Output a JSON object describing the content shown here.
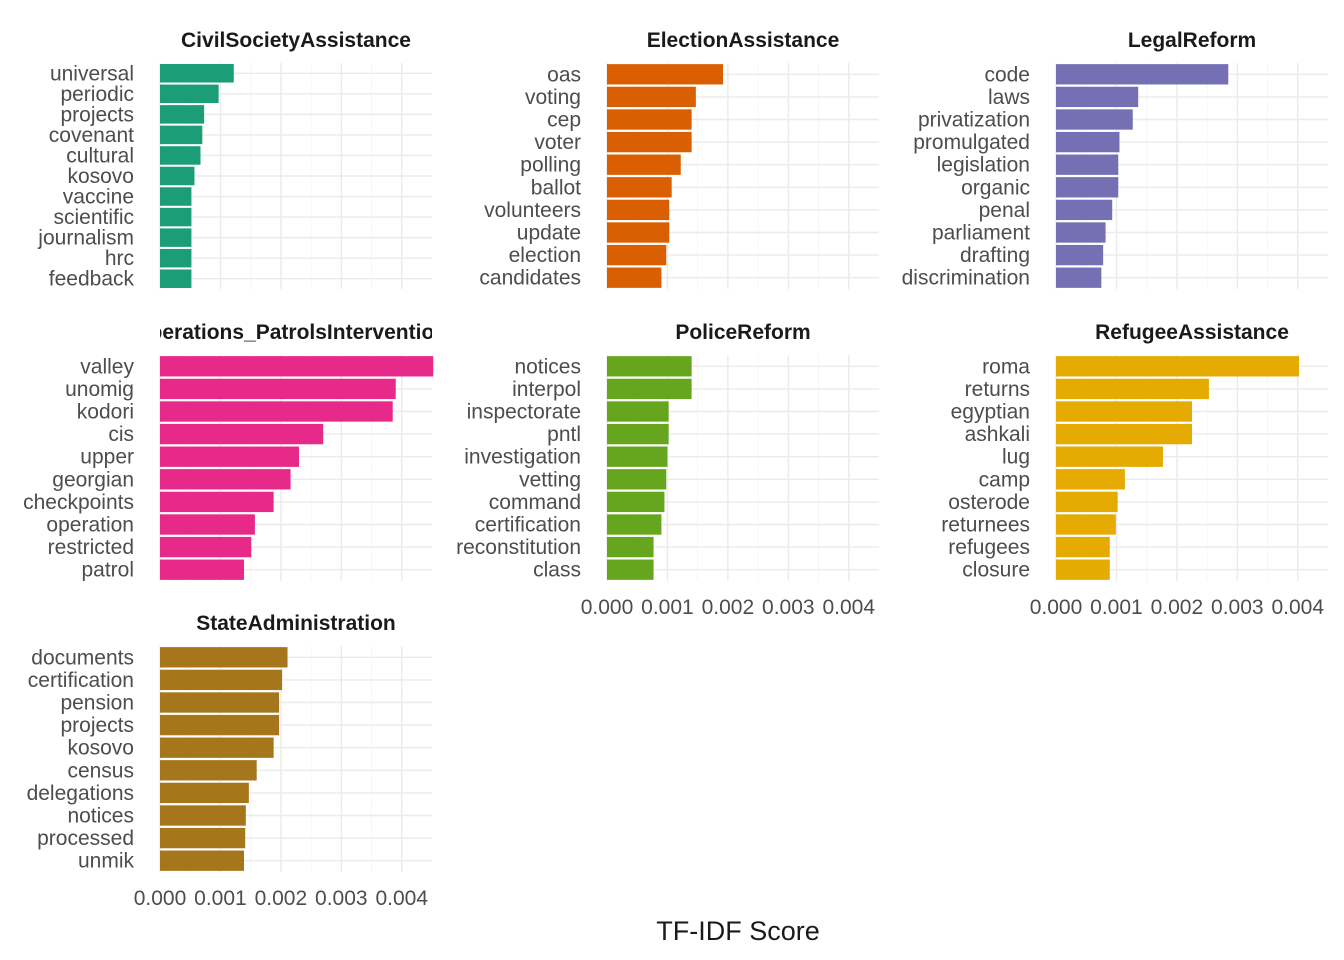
{
  "chart_data": {
    "type": "bar",
    "orientation": "horizontal",
    "xlabel": "TF-IDF Score",
    "ylabel": "",
    "xlim": [
      0,
      0.0045
    ],
    "x_ticks": [
      0.0,
      0.001,
      0.002,
      0.003,
      0.004
    ],
    "x_tick_labels": [
      "0.000",
      "0.001",
      "0.002",
      "0.003",
      "0.004"
    ],
    "grid": true,
    "legend": "none",
    "facets": [
      {
        "title": "CivilSocietyAssistance",
        "color": "#1b9e77",
        "categories": [
          "universal",
          "periodic",
          "projects",
          "covenant",
          "cultural",
          "kosovo",
          "vaccine",
          "scientific",
          "journalism",
          "hrc",
          "feedback"
        ],
        "values": [
          0.00122,
          0.00097,
          0.00073,
          0.0007,
          0.00067,
          0.00057,
          0.00052,
          0.00052,
          0.00052,
          0.00052,
          0.00052
        ]
      },
      {
        "title": "ElectionAssistance",
        "color": "#d95f02",
        "categories": [
          "oas",
          "voting",
          "cep",
          "voter",
          "polling",
          "ballot",
          "volunteers",
          "update",
          "election",
          "candidates"
        ],
        "values": [
          0.00192,
          0.00147,
          0.0014,
          0.0014,
          0.00122,
          0.00107,
          0.00103,
          0.00103,
          0.00098,
          0.0009
        ]
      },
      {
        "title": "LegalReform",
        "color": "#7570b3",
        "categories": [
          "code",
          "laws",
          "privatization",
          "promulgated",
          "legislation",
          "organic",
          "penal",
          "parliament",
          "drafting",
          "discrimination"
        ],
        "values": [
          0.00285,
          0.00136,
          0.00127,
          0.00105,
          0.00103,
          0.00103,
          0.00093,
          0.00082,
          0.00078,
          0.00075
        ]
      },
      {
        "title": "Operations_PatrolsInterventions",
        "color": "#e7298a",
        "categories": [
          "valley",
          "unomig",
          "kodori",
          "cis",
          "upper",
          "georgian",
          "checkpoints",
          "operation",
          "restricted",
          "patrol"
        ],
        "values": [
          0.00452,
          0.0039,
          0.00385,
          0.0027,
          0.0023,
          0.00216,
          0.00188,
          0.00157,
          0.00151,
          0.00139
        ]
      },
      {
        "title": "PoliceReform",
        "color": "#66a61e",
        "categories": [
          "notices",
          "interpol",
          "inspectorate",
          "pntl",
          "investigation",
          "vetting",
          "command",
          "certification",
          "reconstitution",
          "class"
        ],
        "values": [
          0.0014,
          0.0014,
          0.00102,
          0.00102,
          0.001,
          0.00098,
          0.00095,
          0.0009,
          0.00077,
          0.00077
        ]
      },
      {
        "title": "RefugeeAssistance",
        "color": "#e6ab02",
        "categories": [
          "roma",
          "returns",
          "egyptian",
          "ashkali",
          "lug",
          "camp",
          "osterode",
          "returnees",
          "refugees",
          "closure"
        ],
        "values": [
          0.00402,
          0.00253,
          0.00225,
          0.00225,
          0.00177,
          0.00114,
          0.00102,
          0.00099,
          0.00089,
          0.00089
        ]
      },
      {
        "title": "StateAdministration",
        "color": "#a6761d",
        "categories": [
          "documents",
          "certification",
          "pension",
          "projects",
          "kosovo",
          "census",
          "delegations",
          "notices",
          "processed",
          "unmik"
        ],
        "values": [
          0.00211,
          0.00202,
          0.00197,
          0.00197,
          0.00188,
          0.0016,
          0.00147,
          0.00142,
          0.00141,
          0.00139
        ]
      }
    ]
  }
}
